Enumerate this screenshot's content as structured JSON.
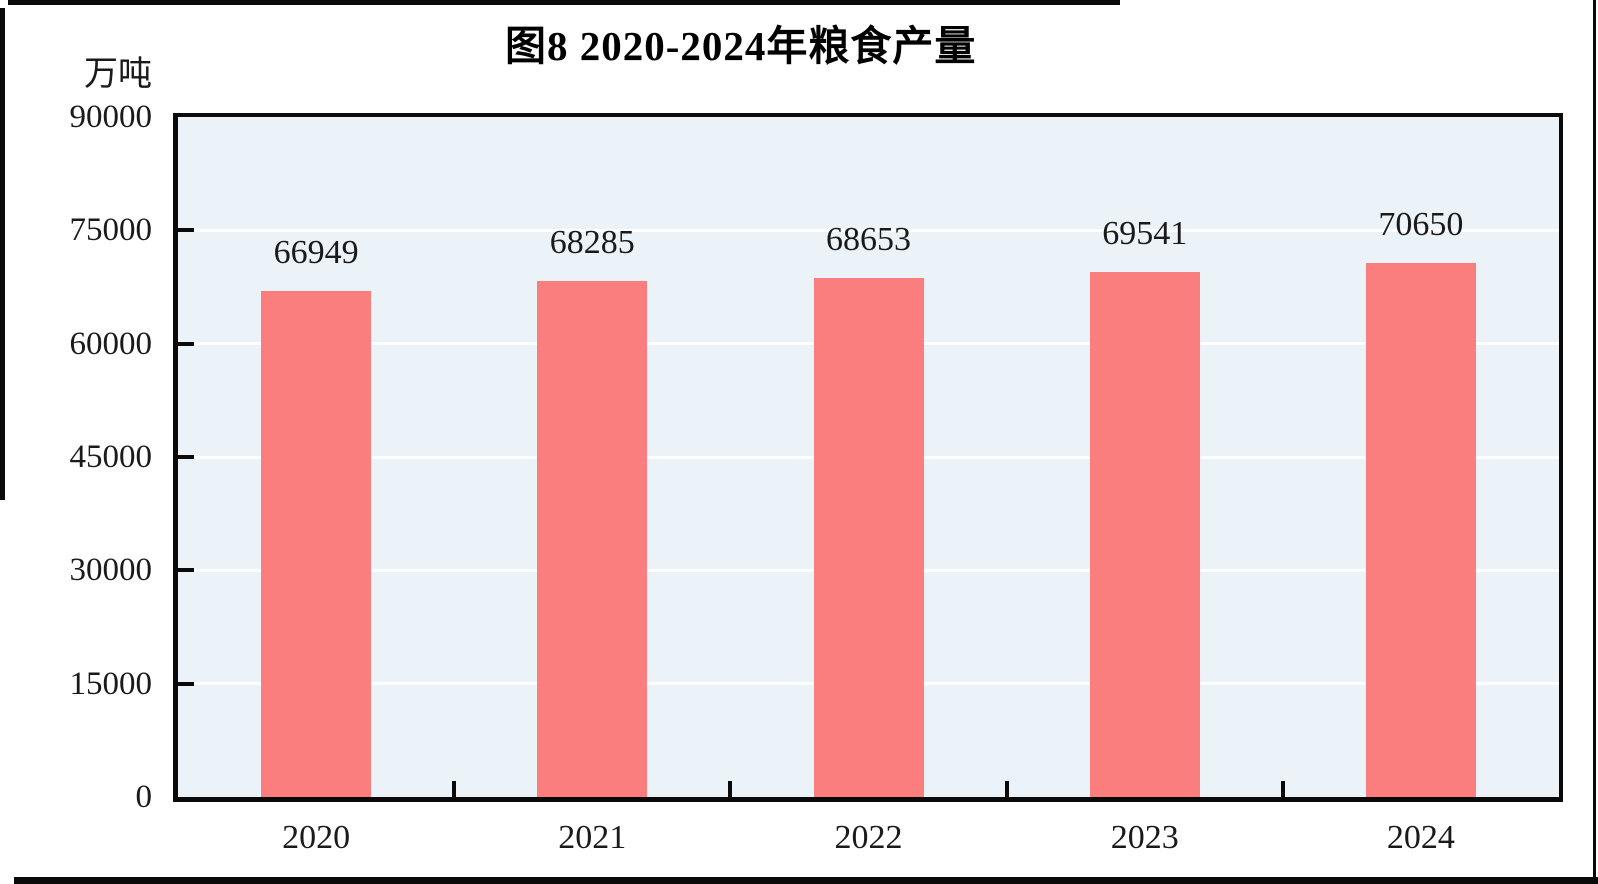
{
  "title": "图8  2020-2024年粮食产量",
  "unit_label": "万吨",
  "chart_data": {
    "type": "bar",
    "title": "图8  2020-2024年粮食产量",
    "ylabel": "万吨",
    "xlabel": "",
    "categories": [
      "2020",
      "2021",
      "2022",
      "2023",
      "2024"
    ],
    "values": [
      66949,
      68285,
      68653,
      69541,
      70650
    ],
    "data_labels_shown": true,
    "ylim": [
      0,
      90000
    ],
    "yticks": [
      0,
      15000,
      30000,
      45000,
      60000,
      75000,
      90000
    ],
    "grid": "horizontal",
    "legend_position": "none",
    "colors": {
      "bar": "#FB7E7E",
      "plot_background": "#ECF3F8",
      "gridline": "#FFFFFF",
      "axis": "#0A0A0A",
      "text": "#1A1A1A"
    }
  }
}
